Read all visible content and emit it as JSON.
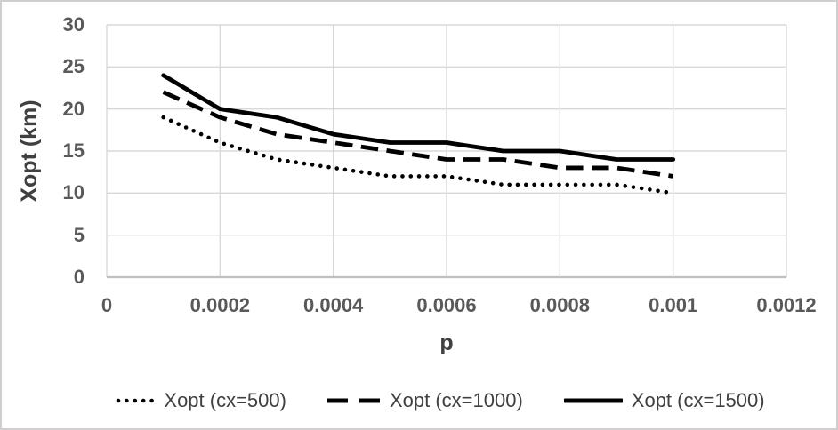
{
  "chart_data": {
    "type": "line",
    "xlabel": "p",
    "ylabel": "Xopt (km)",
    "xlim": [
      0,
      0.0012
    ],
    "ylim": [
      0,
      30
    ],
    "grid": true,
    "legend_position": "bottom",
    "x": [
      0.0001,
      0.0002,
      0.0003,
      0.0004,
      0.0005,
      0.0006,
      0.0007,
      0.0008,
      0.0009,
      0.001
    ],
    "series": [
      {
        "name": "Xopt (cx=500)",
        "style": "dotted",
        "color": "#000000",
        "values": [
          19,
          16,
          14,
          13,
          12,
          12,
          11,
          11,
          11,
          10
        ]
      },
      {
        "name": "Xopt (cx=1000)",
        "style": "dashed",
        "color": "#000000",
        "values": [
          22,
          19,
          17,
          16,
          15,
          14,
          14,
          13,
          13,
          12
        ]
      },
      {
        "name": "Xopt (cx=1500)",
        "style": "solid",
        "color": "#000000",
        "values": [
          24,
          20,
          19,
          17,
          16,
          16,
          15,
          15,
          14,
          14
        ]
      }
    ],
    "xticks": [
      0,
      0.0002,
      0.0004,
      0.0006,
      0.0008,
      0.001,
      0.0012
    ],
    "yticks": [
      0,
      5,
      10,
      15,
      20,
      25,
      30
    ],
    "xtick_labels": [
      "0",
      "0.0002",
      "0.0004",
      "0.0006",
      "0.0008",
      "0.001",
      "0.0012"
    ],
    "ytick_labels": [
      "0",
      "5",
      "10",
      "15",
      "20",
      "25",
      "30"
    ]
  },
  "colors": {
    "background": "#ffffff",
    "frame_border": "#d0cece",
    "gridline": "#d9d9d9",
    "axis_line": "#bfbfbf",
    "tick_text": "#595959",
    "title_text": "#404040",
    "legend_text": "#404040",
    "series_stroke": "#000000"
  }
}
